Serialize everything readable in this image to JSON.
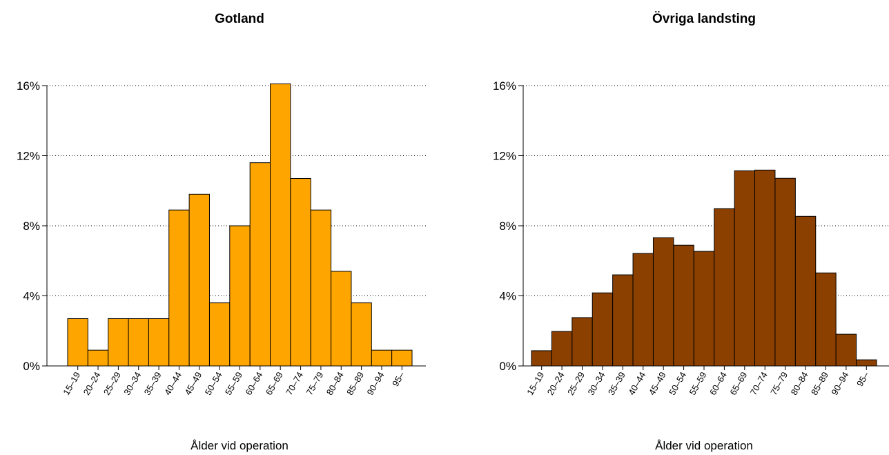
{
  "chart_data": [
    {
      "type": "bar",
      "title": "Gotland",
      "xlabel": "Ålder vid operation",
      "categories": [
        "15–19",
        "20–24",
        "25–29",
        "30–34",
        "35–39",
        "40–44",
        "45–49",
        "50–54",
        "55–59",
        "60–64",
        "65–69",
        "70–74",
        "75–79",
        "80–84",
        "85–89",
        "90–94",
        "95–"
      ],
      "values": [
        2.7,
        0.9,
        2.7,
        2.7,
        2.7,
        8.9,
        9.8,
        3.6,
        8.0,
        11.6,
        16.1,
        10.7,
        8.9,
        5.4,
        3.6,
        0.9,
        0.9
      ],
      "color": "#FFA500",
      "ylim": [
        0,
        16
      ],
      "yticks": [
        {
          "value": 0,
          "label": "0%"
        },
        {
          "value": 4,
          "label": "4%"
        },
        {
          "value": 8,
          "label": "8%"
        },
        {
          "value": 12,
          "label": "12%"
        },
        {
          "value": 16,
          "label": "16%"
        }
      ],
      "grid": true
    },
    {
      "type": "bar",
      "title": "Övriga landsting",
      "xlabel": "Ålder vid operation",
      "categories": [
        "15–19",
        "20–24",
        "25–29",
        "30–34",
        "35–39",
        "40–44",
        "45–49",
        "50–54",
        "55–59",
        "60–64",
        "65–69",
        "70–74",
        "75–79",
        "80–84",
        "85–89",
        "90–94",
        "95–"
      ],
      "values": [
        0.87,
        1.97,
        2.76,
        4.17,
        5.2,
        6.42,
        7.32,
        6.89,
        6.54,
        8.98,
        11.14,
        11.18,
        10.71,
        8.54,
        5.31,
        1.81,
        0.35
      ],
      "color": "#8B4000",
      "ylim": [
        0,
        16
      ],
      "yticks": [
        {
          "value": 0,
          "label": "0%"
        },
        {
          "value": 4,
          "label": "4%"
        },
        {
          "value": 8,
          "label": "8%"
        },
        {
          "value": 12,
          "label": "12%"
        },
        {
          "value": 16,
          "label": "16%"
        }
      ],
      "grid": true
    }
  ]
}
